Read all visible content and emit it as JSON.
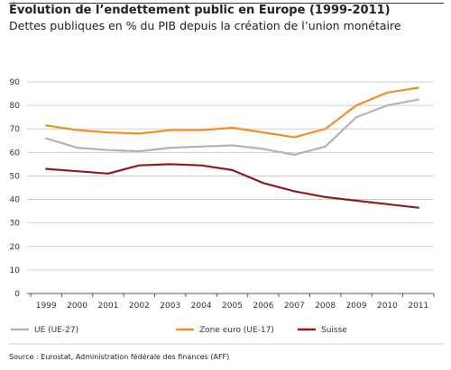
{
  "chart_data": {
    "type": "line",
    "title": "Évolution de l’endettement public en Europe (1999-2011)",
    "subtitle": "Dettes publiques en % du PIB depuis la création de l’union monétaire",
    "source": "Source : Eurostat, Administration fédérale des finances (AFF)",
    "x": [
      "1999",
      "2000",
      "2001",
      "2002",
      "2003",
      "2004",
      "2005",
      "2006",
      "2007",
      "2008",
      "2009",
      "2010",
      "2011"
    ],
    "yticks": [
      "0",
      "10",
      "20",
      "30",
      "40",
      "50",
      "60",
      "70",
      "80",
      "90"
    ],
    "ylim": [
      0,
      90
    ],
    "grid": true,
    "legend_position": "bottom",
    "series": [
      {
        "name": "UE (UE-27)",
        "color": "#b3b3b3",
        "values": [
          66,
          62,
          61,
          60.5,
          62,
          62.5,
          63,
          61.5,
          59,
          62.5,
          75,
          80,
          82.5
        ]
      },
      {
        "name": "Zone euro (UE-17)",
        "color": "#f0902a",
        "values": [
          71.5,
          69.5,
          68.5,
          68,
          69.5,
          69.5,
          70.5,
          68.5,
          66.5,
          70,
          80,
          85.5,
          87.5
        ]
      },
      {
        "name": "Suisse",
        "color": "#8c1c24",
        "values": [
          53,
          52,
          51,
          54.5,
          55,
          54.5,
          52.5,
          47,
          43.5,
          41,
          39.5,
          38,
          36.5
        ]
      }
    ]
  }
}
